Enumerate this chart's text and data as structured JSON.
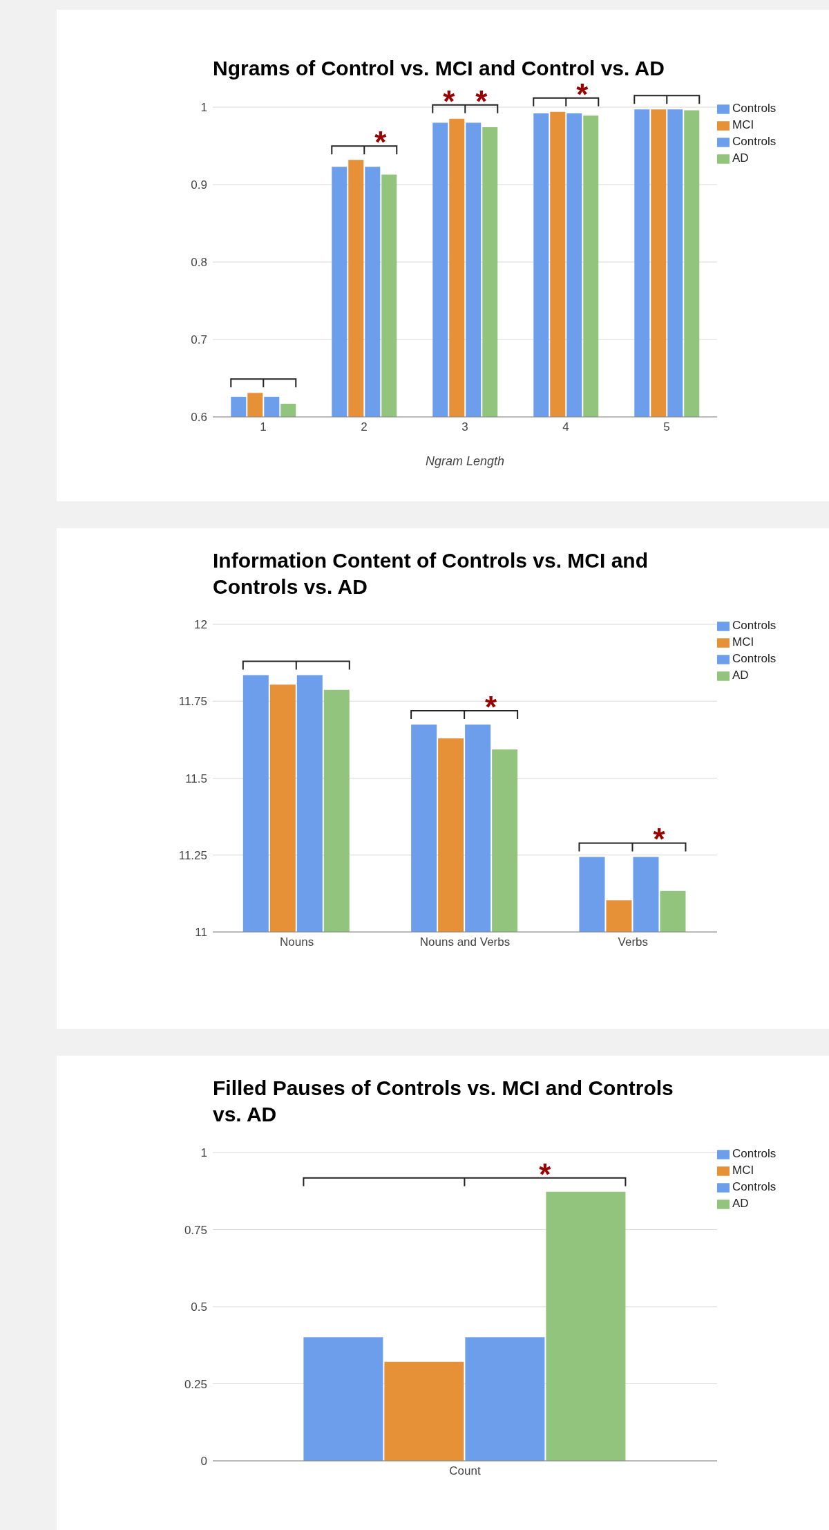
{
  "chart_data": [
    {
      "type": "bar",
      "title": "Ngrams of Control vs. MCI and Control vs. AD",
      "xlabel": "Ngram Length",
      "categories": [
        "1",
        "2",
        "3",
        "4",
        "5"
      ],
      "series": [
        {
          "name": "Controls",
          "color": "#6d9eeb",
          "values": [
            0.626,
            0.923,
            0.98,
            0.992,
            0.997
          ]
        },
        {
          "name": "MCI",
          "color": "#e69138",
          "values": [
            0.631,
            0.932,
            0.985,
            0.994,
            0.997
          ]
        },
        {
          "name": "Controls",
          "color": "#6d9eeb",
          "values": [
            0.626,
            0.923,
            0.98,
            0.992,
            0.997
          ]
        },
        {
          "name": "AD",
          "color": "#93c47d",
          "values": [
            0.617,
            0.913,
            0.974,
            0.989,
            0.996
          ]
        }
      ],
      "ylim": [
        0.6,
        1
      ],
      "yticks": [
        0.6,
        0.7,
        0.8,
        0.9,
        1
      ],
      "grid": "y",
      "legend": "top right",
      "annotations": [
        "*",
        "*",
        "*",
        "*"
      ]
    },
    {
      "type": "bar",
      "title": "Information Content of Controls vs. MCI and Controls vs. AD",
      "categories": [
        "Nouns",
        "Nouns and Verbs",
        "Verbs"
      ],
      "series": [
        {
          "name": "Controls",
          "color": "#6d9eeb",
          "values": [
            11.835,
            11.674,
            11.244
          ]
        },
        {
          "name": "MCI",
          "color": "#e69138",
          "values": [
            11.804,
            11.629,
            11.103
          ]
        },
        {
          "name": "Controls",
          "color": "#6d9eeb",
          "values": [
            11.835,
            11.674,
            11.244
          ]
        },
        {
          "name": "AD",
          "color": "#93c47d",
          "values": [
            11.787,
            11.593,
            11.133
          ]
        }
      ],
      "ylim": [
        11,
        12
      ],
      "yticks": [
        11,
        11.25,
        11.5,
        11.75,
        12
      ],
      "grid": "y",
      "legend": "top right",
      "annotations": [
        "*",
        "*"
      ]
    },
    {
      "type": "bar",
      "title": "Filled Pauses of Controls vs. MCI and Controls vs. AD",
      "categories": [
        "Count"
      ],
      "series": [
        {
          "name": "Controls",
          "color": "#6d9eeb",
          "values": [
            0.401
          ]
        },
        {
          "name": "MCI",
          "color": "#e69138",
          "values": [
            0.321
          ]
        },
        {
          "name": "Controls",
          "color": "#6d9eeb",
          "values": [
            0.401
          ]
        },
        {
          "name": "AD",
          "color": "#93c47d",
          "values": [
            0.873
          ]
        }
      ],
      "ylim": [
        0,
        1
      ],
      "yticks": [
        0,
        0.25,
        0.5,
        0.75,
        1
      ],
      "grid": "y",
      "legend": "top right",
      "annotations": [
        "*"
      ]
    }
  ]
}
